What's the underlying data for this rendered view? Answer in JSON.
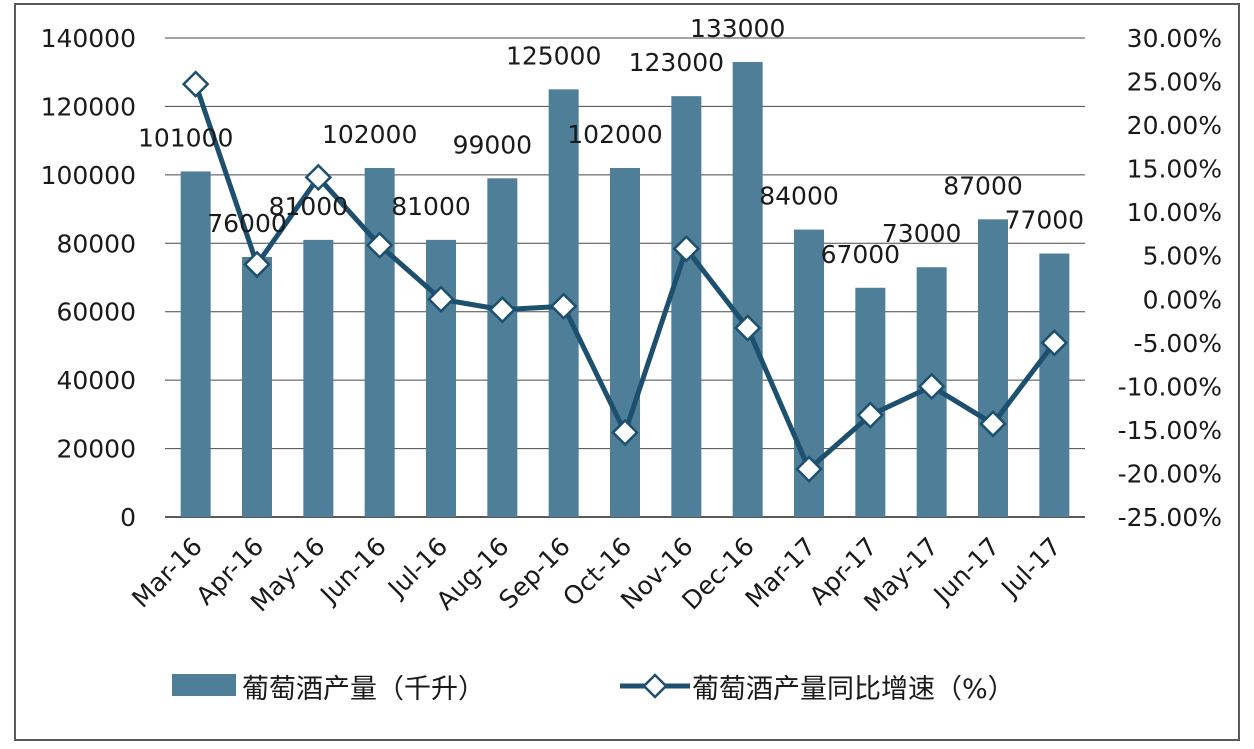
{
  "chart_data": {
    "type": "bar+line",
    "categories": [
      "Mar-16",
      "Apr-16",
      "May-16",
      "Jun-16",
      "Jul-16",
      "Aug-16",
      "Sep-16",
      "Oct-16",
      "Nov-16",
      "Dec-16",
      "Mar-17",
      "Apr-17",
      "May-17",
      "Jun-17",
      "Jul-17"
    ],
    "series": [
      {
        "name": "葡萄酒产量（千升）",
        "type": "bar",
        "axis": "left",
        "color": "#4f7f98",
        "values": [
          101000,
          76000,
          81000,
          102000,
          81000,
          99000,
          125000,
          102000,
          123000,
          133000,
          84000,
          67000,
          73000,
          87000,
          77000
        ],
        "labels": [
          "101000",
          "76000",
          "81000",
          "102000",
          "81000",
          "99000",
          "125000",
          "102000",
          "123000",
          "133000",
          "84000",
          "67000",
          "73000",
          "87000",
          "77000"
        ]
      },
      {
        "name": "葡萄酒产量同比增速（%）",
        "type": "line",
        "axis": "right",
        "color": "#1d4f6e",
        "marker": "diamond",
        "values": [
          24.7,
          4.0,
          14.0,
          6.2,
          0.0,
          -1.2,
          -0.8,
          -15.3,
          5.8,
          -3.3,
          -19.5,
          -13.3,
          -10.0,
          -14.3,
          -5.0
        ]
      }
    ],
    "y_left": {
      "min": 0,
      "max": 140000,
      "step": 20000,
      "ticks": [
        "0",
        "20000",
        "40000",
        "60000",
        "80000",
        "100000",
        "120000",
        "140000"
      ]
    },
    "y_right": {
      "min": -25,
      "max": 30,
      "step": 5,
      "ticks": [
        "-25.00%",
        "-20.00%",
        "-15.00%",
        "-10.00%",
        "-5.00%",
        "0.00%",
        "5.00%",
        "10.00%",
        "15.00%",
        "20.00%",
        "25.00%",
        "30.00%"
      ]
    },
    "grid": true,
    "legend_position": "bottom"
  }
}
